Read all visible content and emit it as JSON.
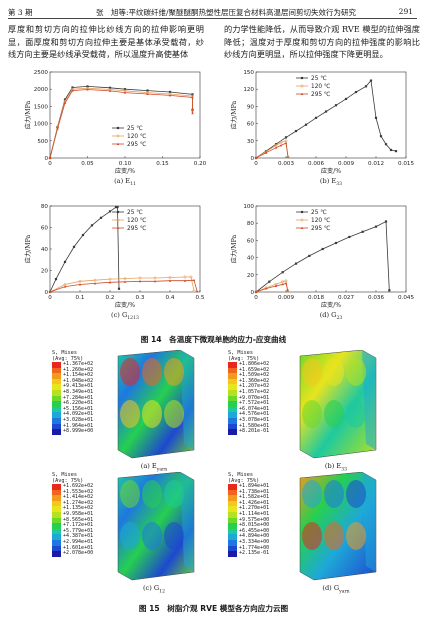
{
  "header": {
    "issue": "第 3 期",
    "title": "张　旭等:平纹碳纤维/聚醚醚酮热塑性层压复合材料高温层间剪切失效行为研究",
    "page": "291"
  },
  "body_text": {
    "left": "厚度和剪切方向的拉伸比纱线方向的拉伸影响更明显，面厚度和剪切方向拉伸主要是基体承受载荷，纱线方向主要是纱线承受载荷，所以温度升高使基体",
    "right": "的力学性能降低，从而导致介观 RVE 模型的拉伸强度降低；温度对于厚度和剪切方向的拉伸强度的影响比纱线方向更明显，所以拉伸强度下降更明显。"
  },
  "legend_labels": [
    "25 ℃",
    "120 ℃",
    "295 ℃"
  ],
  "colors": {
    "c25": "#3a3a3a",
    "c120": "#e8a05a",
    "c295": "#d04a2a"
  },
  "chart_data": [
    {
      "type": "line",
      "panel": "(a)",
      "caption_main": "(a) E",
      "caption_sub": "11",
      "xlabel": "应变/%",
      "ylabel": "应力/MPa",
      "xlim": [
        0,
        0.2
      ],
      "ylim": [
        0,
        2500
      ],
      "xticks": [
        "0",
        "0.05",
        "0.10",
        "0.15",
        "0.20"
      ],
      "yticks": [
        "0",
        "500",
        "1000",
        "1500",
        "2000",
        "2500"
      ],
      "legend_position": "bottom-right",
      "series": [
        {
          "name": "25 ℃",
          "x": [
            0,
            0.01,
            0.02,
            0.03,
            0.05,
            0.08,
            0.1,
            0.13,
            0.16,
            0.19,
            0.19
          ],
          "y": [
            0,
            900,
            1700,
            2050,
            2080,
            2040,
            2000,
            1960,
            1920,
            1850,
            1400
          ]
        },
        {
          "name": "120 ℃",
          "x": [
            0,
            0.01,
            0.02,
            0.03,
            0.05,
            0.08,
            0.1,
            0.13,
            0.16,
            0.19,
            0.19
          ],
          "y": [
            0,
            880,
            1650,
            2000,
            2030,
            1990,
            1950,
            1900,
            1860,
            1800,
            1350
          ]
        },
        {
          "name": "295 ℃",
          "x": [
            0,
            0.01,
            0.02,
            0.03,
            0.05,
            0.08,
            0.1,
            0.13,
            0.16,
            0.19,
            0.19
          ],
          "y": [
            0,
            850,
            1600,
            1960,
            1990,
            1950,
            1900,
            1860,
            1820,
            1760,
            1300
          ]
        }
      ]
    },
    {
      "type": "line",
      "panel": "(b)",
      "caption_main": "(b) E",
      "caption_sub": "33",
      "xlabel": "应变/%",
      "ylabel": "应力/MPa",
      "xlim": [
        0,
        0.015
      ],
      "ylim": [
        0,
        150
      ],
      "xticks": [
        "0",
        "0.003",
        "0.006",
        "0.009",
        "0.012",
        "0.015"
      ],
      "yticks": [
        "0",
        "30",
        "60",
        "90",
        "120",
        "150"
      ],
      "legend_position": "top-left",
      "series": [
        {
          "name": "25 ℃",
          "x": [
            0,
            0.001,
            0.002,
            0.003,
            0.004,
            0.005,
            0.006,
            0.007,
            0.008,
            0.009,
            0.01,
            0.011,
            0.0115,
            0.012,
            0.0125,
            0.013,
            0.0135,
            0.014
          ],
          "y": [
            0,
            12,
            24,
            36,
            47,
            58,
            70,
            81,
            92,
            103,
            115,
            125,
            135,
            70,
            38,
            24,
            14,
            12
          ]
        },
        {
          "name": "120 ℃",
          "x": [
            0,
            0.001,
            0.002,
            0.0025,
            0.003,
            0.0032
          ],
          "y": [
            0,
            11,
            22,
            27,
            30,
            2
          ]
        },
        {
          "name": "295 ℃",
          "x": [
            0,
            0.001,
            0.002,
            0.0025,
            0.003,
            0.0032
          ],
          "y": [
            0,
            9,
            18,
            22,
            26,
            2
          ]
        }
      ]
    },
    {
      "type": "line",
      "panel": "(c)",
      "caption_main": "(c) G",
      "caption_sub": "1213",
      "xlabel": "应变/%",
      "ylabel": "应力/MPa",
      "xlim": [
        0,
        0.5
      ],
      "ylim": [
        0,
        80
      ],
      "xticks": [
        "0",
        "0.1",
        "0.2",
        "0.3",
        "0.4",
        "0.5"
      ],
      "yticks": [
        "0",
        "20",
        "40",
        "60",
        "80"
      ],
      "legend_position": "top-right",
      "series": [
        {
          "name": "25 ℃",
          "x": [
            0,
            0.02,
            0.05,
            0.08,
            0.11,
            0.14,
            0.17,
            0.2,
            0.22,
            0.225,
            0.23
          ],
          "y": [
            0,
            12,
            28,
            42,
            53,
            62,
            69,
            75,
            79,
            79,
            3
          ]
        },
        {
          "name": "120 ℃",
          "x": [
            0,
            0.05,
            0.1,
            0.15,
            0.2,
            0.25,
            0.3,
            0.35,
            0.4,
            0.45,
            0.47,
            0.48
          ],
          "y": [
            0,
            7,
            10,
            11,
            12,
            12.5,
            13,
            13,
            13.5,
            14,
            14,
            1
          ]
        },
        {
          "name": "295 ℃",
          "x": [
            0,
            0.05,
            0.1,
            0.15,
            0.2,
            0.25,
            0.3,
            0.35,
            0.4,
            0.45,
            0.48,
            0.49
          ],
          "y": [
            0,
            5,
            7,
            8,
            9,
            9.5,
            10,
            10,
            10.5,
            10.5,
            11,
            1
          ]
        }
      ]
    },
    {
      "type": "line",
      "panel": "(d)",
      "caption_main": "(d) G",
      "caption_sub": "23",
      "xlabel": "应变/%",
      "ylabel": "应力/MPa",
      "xlim": [
        0,
        0.045
      ],
      "ylim": [
        0,
        100
      ],
      "xticks": [
        "0",
        "0.009",
        "0.018",
        "0.027",
        "0.036",
        "0.045"
      ],
      "yticks": [
        "0",
        "20",
        "40",
        "60",
        "80",
        "100"
      ],
      "legend_position": "top-left",
      "series": [
        {
          "name": "25 ℃",
          "x": [
            0,
            0.004,
            0.008,
            0.012,
            0.016,
            0.02,
            0.024,
            0.028,
            0.032,
            0.036,
            0.039,
            0.04
          ],
          "y": [
            0,
            12,
            23,
            33,
            42,
            50,
            57,
            64,
            70,
            76,
            82,
            2
          ]
        },
        {
          "name": "120 ℃",
          "x": [
            0,
            0.003,
            0.006,
            0.008,
            0.009,
            0.0095
          ],
          "y": [
            0,
            5,
            9,
            12,
            13,
            2
          ]
        },
        {
          "name": "295 ℃",
          "x": [
            0,
            0.003,
            0.006,
            0.008,
            0.009,
            0.0095
          ],
          "y": [
            0,
            4,
            7,
            9,
            10,
            2
          ]
        }
      ]
    }
  ],
  "figure14_caption": "图 14　各温度下微观单胞的应力-应变曲线",
  "figure15_caption": "图 15　树脂介观 RVE 模型各方向应力云图",
  "contour_panels": [
    {
      "caption_main": "(a) E",
      "caption_sub": "yarn",
      "header": [
        "S, Mises",
        "(Avg: 75%)"
      ],
      "values": [
        "+1.367e+02",
        "+1.260e+02",
        "+1.154e+02",
        "+1.048e+02",
        "+9.413e+01",
        "+8.349e+01",
        "+7.284e+01",
        "+6.220e+01",
        "+5.156e+01",
        "+4.092e+01",
        "+3.028e+01",
        "+1.964e+01",
        "+8.999e+00"
      ]
    },
    {
      "caption_main": "(b) E",
      "caption_sub": "33",
      "header": [
        "S, Mises",
        "(Avg: 75%)"
      ],
      "values": [
        "+1.806e+02",
        "+1.659e+02",
        "+1.509e+02",
        "+1.360e+02",
        "+1.207e+02",
        "+1.057e+02",
        "+9.070e+01",
        "+7.572e+01",
        "+6.074e+01",
        "+4.576e+01",
        "+3.078e+01",
        "+1.580e+01",
        "+8.201e-01"
      ]
    },
    {
      "caption_main": "(c) G",
      "caption_sub": "12",
      "header": [
        "S, Mises",
        "(Avg: 75%)"
      ],
      "values": [
        "+1.692e+02",
        "+1.553e+02",
        "+1.414e+02",
        "+1.274e+02",
        "+1.135e+02",
        "+9.958e+01",
        "+8.565e+01",
        "+7.172e+01",
        "+5.779e+01",
        "+4.387e+01",
        "+2.994e+01",
        "+1.601e+01",
        "+2.078e+00"
      ]
    },
    {
      "caption_main": "(d) G",
      "caption_sub": "yarn",
      "header": [
        "S, Mises",
        "(Avg: 75%)"
      ],
      "values": [
        "+1.894e+01",
        "+1.738e+01",
        "+1.582e+01",
        "+1.426e+01",
        "+1.270e+01",
        "+1.114e+01",
        "+9.575e+00",
        "+8.015e+00",
        "+6.455e+00",
        "+4.894e+00",
        "+3.334e+00",
        "+1.774e+00",
        "+2.135e-01"
      ]
    }
  ],
  "contour_colors": [
    "#e8271d",
    "#f0641c",
    "#f29a1e",
    "#f5c61e",
    "#e8e41e",
    "#b4e21e",
    "#6cd82a",
    "#26cf50",
    "#1ec9a0",
    "#1ea8d8",
    "#1e78e0",
    "#1e48d0",
    "#1a1aa8"
  ]
}
